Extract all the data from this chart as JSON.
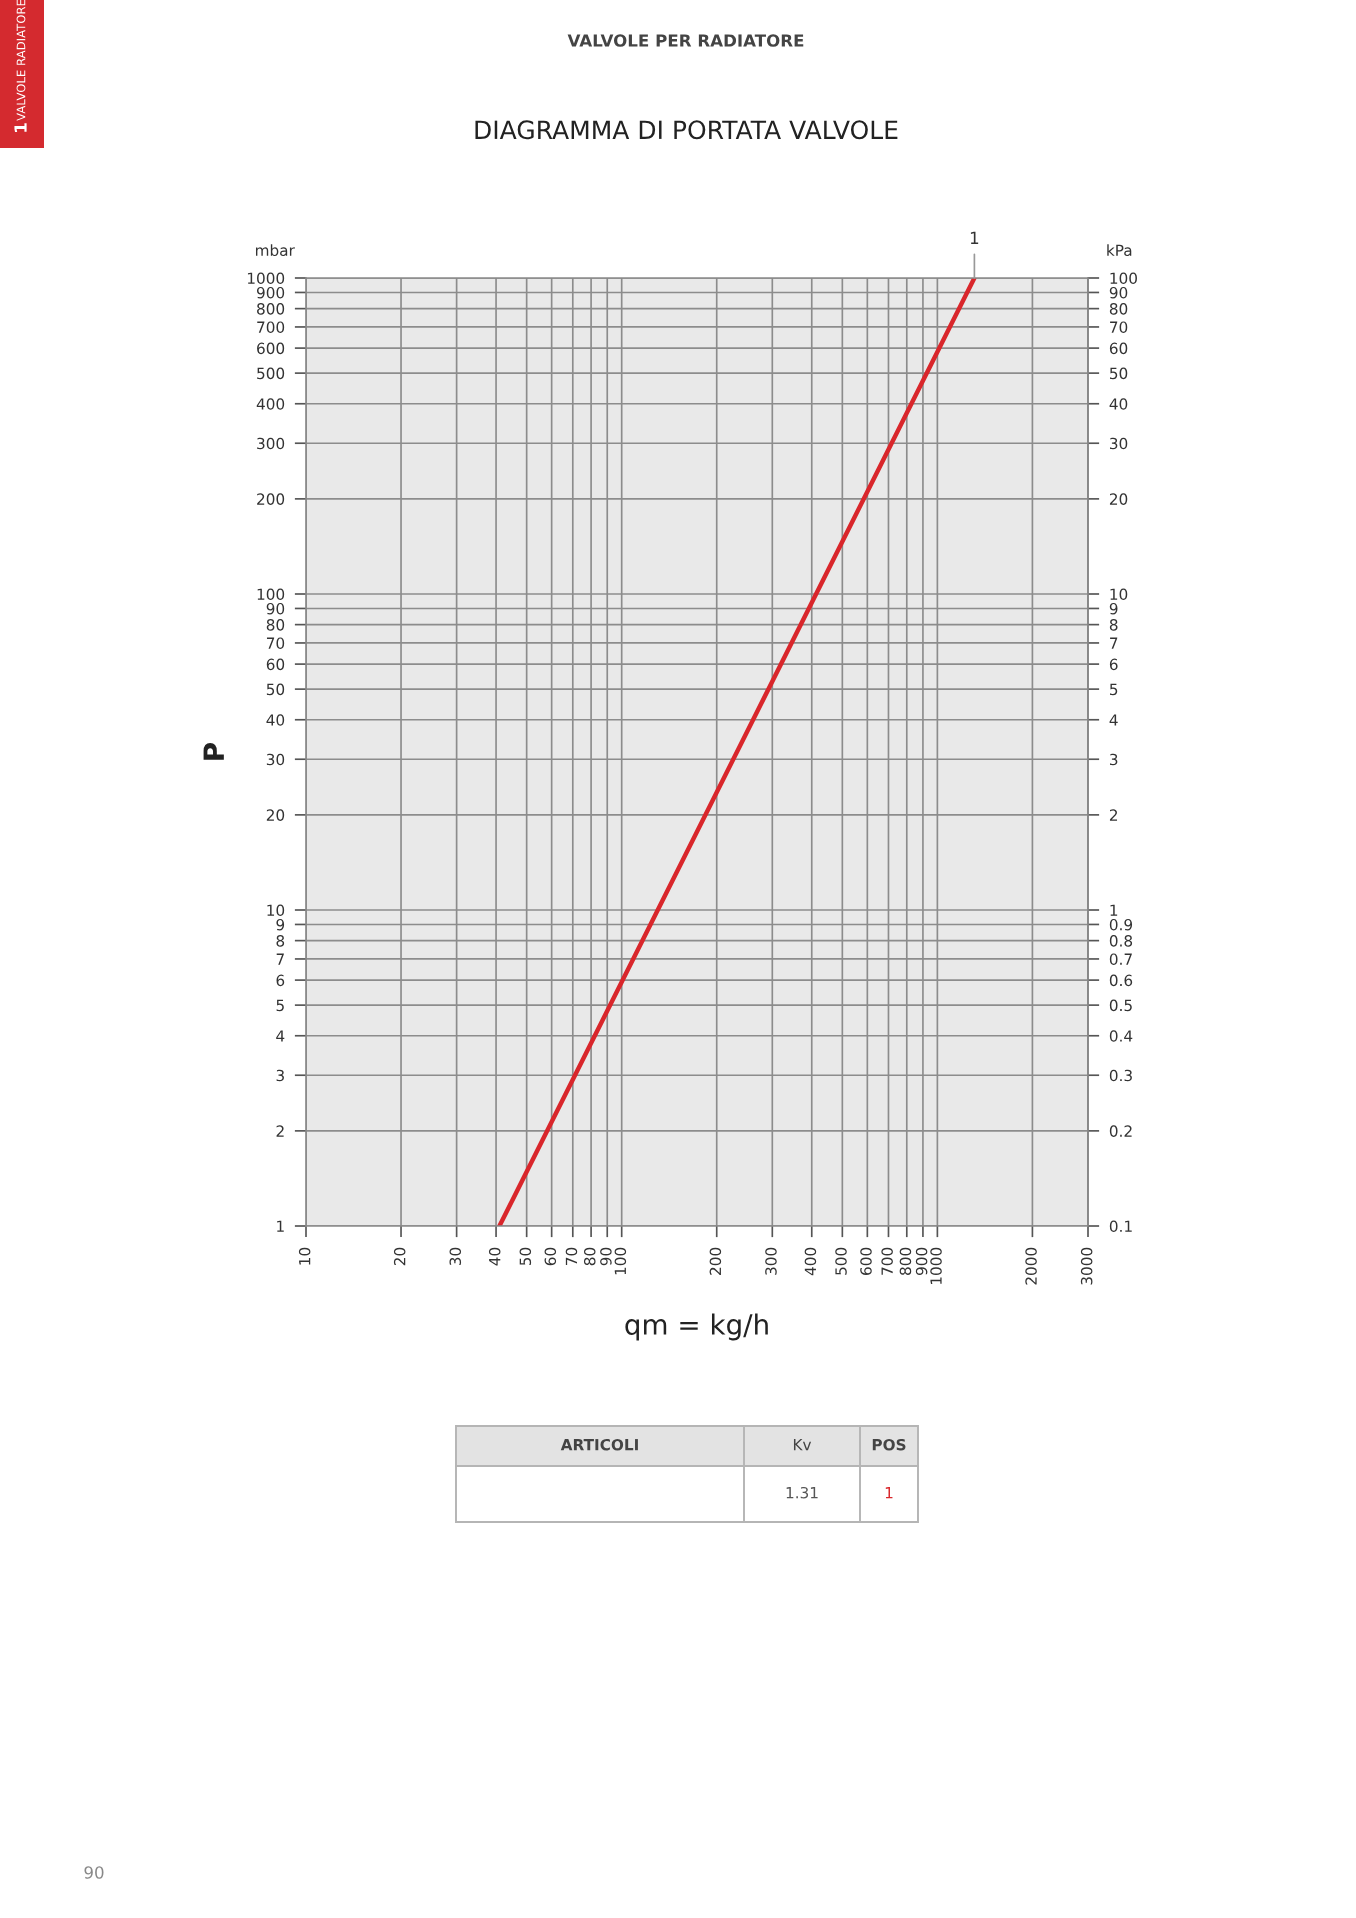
{
  "chart_data": [
    {
      "type": "line",
      "title": "DIAGRAMMA DI PORTATA VALVOLE",
      "subtitle": "VALVOLE PER RADIATORE",
      "xlabel": "qm = kg/h",
      "ylabel": "P",
      "annotations": [
        "mbar",
        "1",
        "VALVOLE RADIATORE",
        "ARTICOLI",
        "Kv",
        "POS",
        "1.31",
        "1",
        "90"
      ],
      "series": [
        {
          "name": "1",
          "color": "#d9262b",
          "x": [
            41,
            1310
          ],
          "values": [
            1,
            1000
          ]
        }
      ],
      "log": "xy",
      "line_style": "solid",
      "grid": true,
      "legend": false,
      "xlim": [
        10,
        3000
      ],
      "xticks": [
        10,
        20,
        30,
        40,
        50,
        60,
        70,
        80,
        90,
        100,
        200,
        300,
        400,
        500,
        600,
        700,
        800,
        900,
        1000,
        2000,
        3000
      ],
      "ylim": [
        1,
        1000
      ],
      "yticks": [
        1,
        2,
        3,
        4,
        5,
        6,
        7,
        8,
        9,
        10,
        20,
        30,
        40,
        50,
        60,
        70,
        80,
        90,
        100,
        200,
        300,
        400,
        500,
        600,
        700,
        800,
        900,
        1000
      ]
    },
    {
      "type": "line",
      "ylabel": "kPa",
      "log": "xy",
      "tick_labels": "y",
      "xlim": [
        10,
        3000
      ],
      "ylim": [
        0.1,
        100
      ],
      "yticks": [
        0.1,
        0.2,
        0.3,
        0.4,
        0.5,
        0.6,
        0.7,
        0.8,
        0.9,
        1,
        2,
        3,
        4,
        5,
        6,
        7,
        8,
        9,
        10,
        20,
        30,
        40,
        50,
        60,
        70,
        80,
        90,
        100
      ]
    }
  ]
}
